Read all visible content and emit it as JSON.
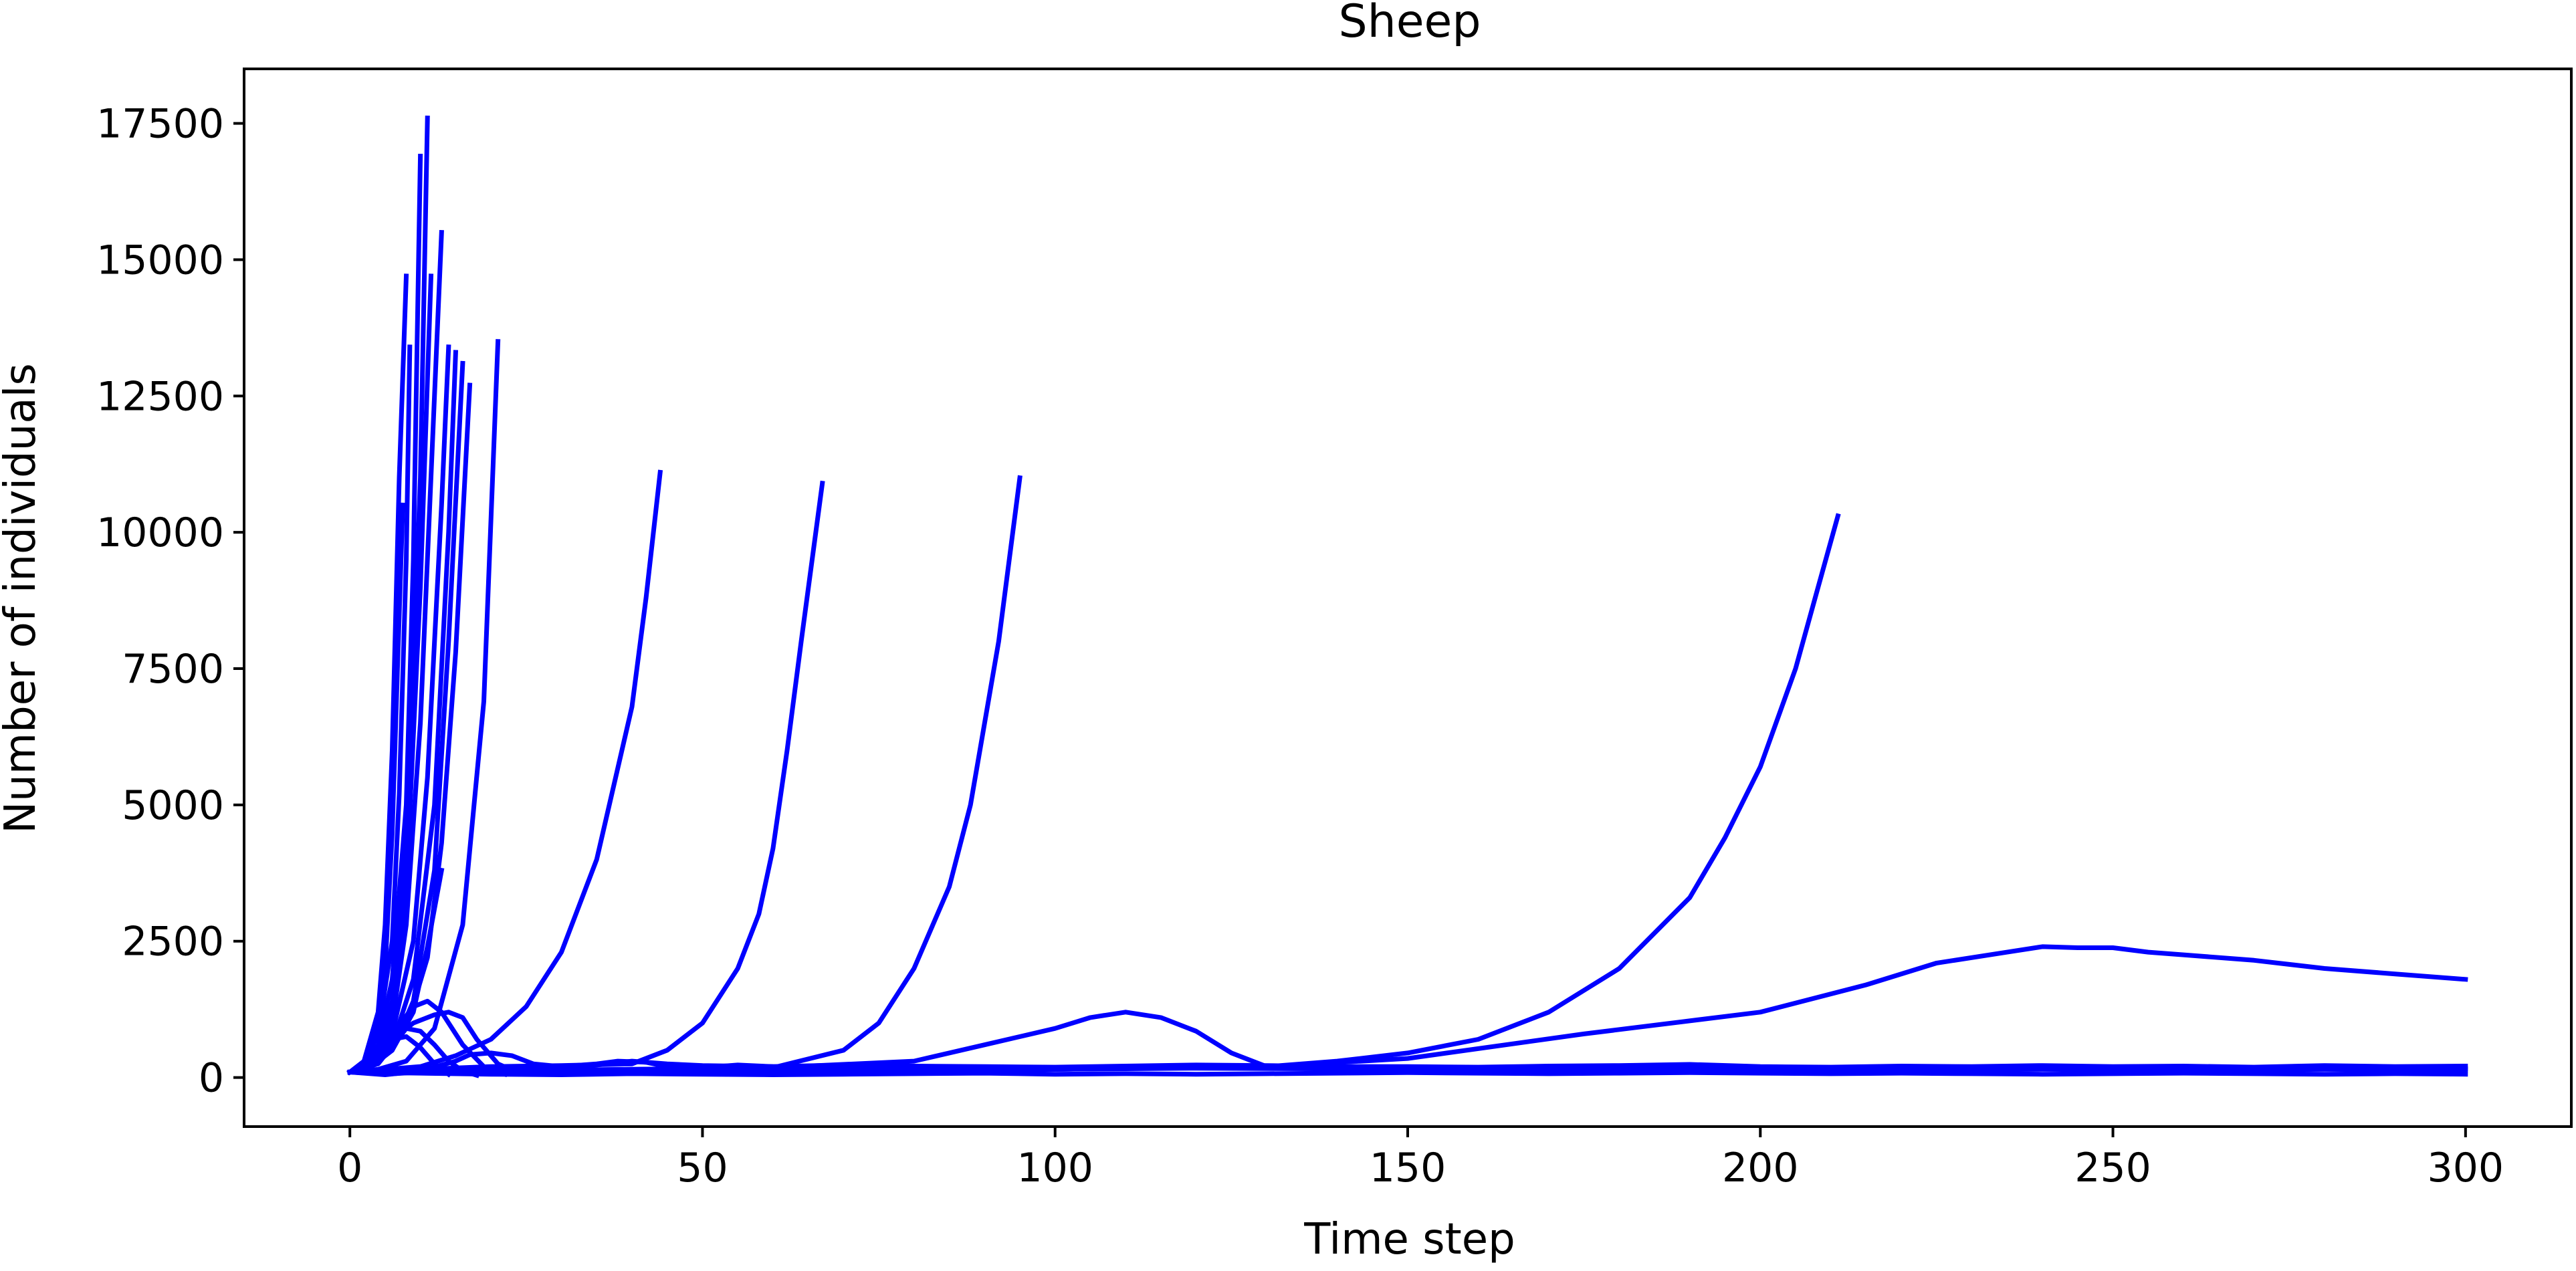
{
  "chart_data": {
    "type": "line",
    "title": "Sheep",
    "xlabel": "Time step",
    "ylabel": "Number of individuals",
    "xlim": [
      -15,
      315
    ],
    "ylim": [
      -900,
      18500
    ],
    "xticks": [
      0,
      50,
      100,
      150,
      200,
      250,
      300
    ],
    "yticks": [
      0,
      2500,
      5000,
      7500,
      10000,
      12500,
      15000,
      17500
    ],
    "xtick_labels": [
      "0",
      "50",
      "100",
      "150",
      "200",
      "250",
      "300"
    ],
    "ytick_labels": [
      "0",
      "2500",
      "5000",
      "7500",
      "10000",
      "12500",
      "15000",
      "17500"
    ],
    "grid": false,
    "legend": "none",
    "color": "#0000ff",
    "series": [
      {
        "x": [
          0,
          2,
          4,
          5,
          6,
          7,
          7.5
        ],
        "y": [
          100,
          250,
          900,
          2000,
          4500,
          8500,
          10500
        ]
      },
      {
        "x": [
          0,
          2,
          4,
          5,
          6,
          7,
          8
        ],
        "y": [
          100,
          300,
          1200,
          2800,
          6000,
          11000,
          14700
        ]
      },
      {
        "x": [
          0,
          2,
          4,
          6,
          7,
          8,
          8.5
        ],
        "y": [
          100,
          250,
          800,
          2500,
          5200,
          9500,
          13400
        ]
      },
      {
        "x": [
          0,
          2,
          4,
          6,
          8,
          9,
          10
        ],
        "y": [
          100,
          200,
          600,
          1800,
          5000,
          9500,
          16900
        ]
      },
      {
        "x": [
          0,
          2,
          4,
          6,
          8,
          10,
          11
        ],
        "y": [
          100,
          200,
          500,
          1400,
          4200,
          11000,
          17600
        ]
      },
      {
        "x": [
          0,
          2,
          4,
          6,
          8,
          10,
          11.5
        ],
        "y": [
          100,
          180,
          450,
          1200,
          3500,
          9000,
          14700
        ]
      },
      {
        "x": [
          0,
          2,
          4,
          6,
          8,
          10,
          12,
          13
        ],
        "y": [
          100,
          180,
          400,
          1000,
          2800,
          6500,
          12500,
          15500
        ]
      },
      {
        "x": [
          0,
          3,
          6,
          9,
          11,
          13,
          14
        ],
        "y": [
          100,
          250,
          800,
          2500,
          5500,
          10500,
          13400
        ]
      },
      {
        "x": [
          0,
          3,
          6,
          9,
          12,
          14,
          15
        ],
        "y": [
          100,
          220,
          600,
          1800,
          5000,
          10000,
          13300
        ]
      },
      {
        "x": [
          0,
          3,
          6,
          9,
          12,
          14,
          16
        ],
        "y": [
          100,
          200,
          500,
          1400,
          3800,
          8000,
          13100
        ]
      },
      {
        "x": [
          0,
          4,
          8,
          11,
          13,
          15,
          17
        ],
        "y": [
          100,
          250,
          900,
          2200,
          4300,
          7800,
          12700
        ]
      },
      {
        "x": [
          0,
          3,
          6,
          9,
          11,
          13
        ],
        "y": [
          100,
          200,
          500,
          1200,
          2400,
          3800
        ]
      },
      {
        "x": [
          0,
          4,
          8,
          12,
          16,
          19,
          21
        ],
        "y": [
          100,
          150,
          300,
          900,
          2800,
          6900,
          13500
        ]
      },
      {
        "x": [
          0,
          3,
          6,
          9,
          11,
          13,
          16,
          19,
          22
        ],
        "y": [
          100,
          300,
          800,
          1300,
          1400,
          1200,
          600,
          200,
          60
        ]
      },
      {
        "x": [
          0,
          3,
          6,
          9,
          12,
          14,
          16,
          18,
          21,
          24
        ],
        "y": [
          100,
          300,
          700,
          1000,
          1150,
          1200,
          1100,
          700,
          250,
          80
        ]
      },
      {
        "x": [
          0,
          3,
          6,
          8,
          10,
          12,
          14,
          16,
          18
        ],
        "y": [
          100,
          300,
          700,
          900,
          850,
          600,
          300,
          120,
          40
        ]
      },
      {
        "x": [
          0,
          2,
          4,
          6,
          8,
          10,
          12,
          14
        ],
        "y": [
          100,
          250,
          500,
          700,
          750,
          550,
          250,
          60
        ]
      },
      {
        "x": [
          0,
          5,
          10,
          15,
          17,
          20,
          23,
          26,
          30,
          35,
          40,
          45,
          50,
          60,
          70,
          80,
          90,
          100,
          110,
          120,
          130,
          140,
          150,
          160,
          170,
          180,
          190,
          200,
          210,
          220,
          230,
          240,
          250,
          260,
          270,
          280,
          290,
          300
        ],
        "y": [
          100,
          50,
          120,
          300,
          420,
          450,
          400,
          250,
          200,
          230,
          300,
          250,
          220,
          200,
          230,
          210,
          200,
          190,
          210,
          230,
          220,
          200,
          200,
          190,
          210,
          220,
          240,
          200,
          190,
          210,
          200,
          220,
          200,
          210,
          190,
          220,
          200,
          210
        ]
      },
      {
        "x": [
          0,
          5,
          10,
          15,
          20,
          25,
          30,
          35,
          38,
          42,
          45,
          50,
          55,
          60,
          70,
          80,
          90,
          100,
          120,
          140,
          160,
          180,
          200,
          220,
          240,
          260,
          280,
          300
        ],
        "y": [
          100,
          60,
          100,
          150,
          120,
          180,
          200,
          250,
          300,
          280,
          200,
          180,
          230,
          200,
          180,
          170,
          160,
          150,
          170,
          160,
          150,
          140,
          150,
          140,
          150,
          140,
          150,
          140
        ]
      },
      {
        "x": [
          0,
          10,
          20,
          30,
          40,
          50,
          60,
          70,
          80,
          90,
          100,
          110,
          120,
          130,
          140,
          150,
          160,
          170,
          180,
          190,
          200,
          210,
          220,
          230,
          240,
          250,
          260,
          270,
          280,
          290,
          300
        ],
        "y": [
          100,
          80,
          60,
          50,
          70,
          60,
          50,
          60,
          70,
          80,
          60,
          70,
          60,
          70,
          80,
          90,
          80,
          70,
          80,
          90,
          80,
          70,
          80,
          70,
          60,
          70,
          80,
          70,
          60,
          70,
          60
        ]
      },
      {
        "x": [
          0,
          5,
          10,
          15,
          20,
          25,
          30,
          35,
          40,
          42,
          44
        ],
        "y": [
          100,
          150,
          200,
          400,
          700,
          1300,
          2300,
          4000,
          6800,
          8800,
          11100
        ]
      },
      {
        "x": [
          0,
          10,
          20,
          30,
          40,
          45,
          50,
          55,
          58,
          60,
          62,
          64,
          67
        ],
        "y": [
          100,
          150,
          200,
          220,
          250,
          500,
          1000,
          2000,
          3000,
          4200,
          6000,
          8000,
          10900
        ]
      },
      {
        "x": [
          0,
          20,
          40,
          60,
          70,
          75,
          80,
          85,
          88,
          90,
          92,
          95
        ],
        "y": [
          100,
          120,
          150,
          180,
          500,
          1000,
          2000,
          3500,
          5000,
          6500,
          8000,
          11000
        ]
      },
      {
        "x": [
          0,
          20,
          40,
          60,
          80,
          90,
          100,
          105,
          110,
          115,
          120,
          125,
          130,
          140,
          160,
          180,
          200,
          220,
          240,
          260,
          280,
          300
        ],
        "y": [
          100,
          120,
          150,
          180,
          300,
          600,
          900,
          1100,
          1200,
          1100,
          850,
          450,
          200,
          160,
          150,
          170,
          160,
          150,
          160,
          150,
          170,
          160
        ]
      },
      {
        "x": [
          0,
          50,
          100,
          130,
          140,
          150,
          160,
          170,
          180,
          190,
          195,
          200,
          205,
          208,
          211
        ],
        "y": [
          100,
          120,
          150,
          200,
          300,
          450,
          700,
          1200,
          2000,
          3300,
          4400,
          5700,
          7500,
          8900,
          10300
        ]
      },
      {
        "x": [
          0,
          50,
          100,
          130,
          150,
          175,
          200,
          215,
          225,
          235,
          240,
          245,
          250,
          255,
          260,
          270,
          280,
          290,
          300
        ],
        "y": [
          100,
          120,
          150,
          200,
          350,
          800,
          1200,
          1700,
          2100,
          2300,
          2400,
          2380,
          2380,
          2300,
          2250,
          2150,
          2000,
          1900,
          1800
        ]
      }
    ]
  }
}
